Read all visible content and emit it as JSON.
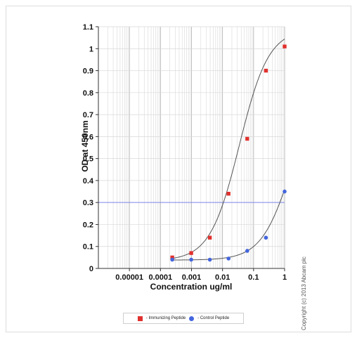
{
  "chart_data": {
    "type": "scatter",
    "title": "",
    "xlabel": "Concentration ug/ml",
    "ylabel": "OD at 450nm",
    "xscale": "log",
    "xlim": [
      1e-06,
      1
    ],
    "ylim": [
      0,
      1.1
    ],
    "x_ticks": [
      {
        "value": 1e-05,
        "label": "0.00001"
      },
      {
        "value": 0.0001,
        "label": "0.0001"
      },
      {
        "value": 0.001,
        "label": "0.001"
      },
      {
        "value": 0.01,
        "label": "0.01"
      },
      {
        "value": 0.1,
        "label": "0.1"
      },
      {
        "value": 1,
        "label": "1"
      }
    ],
    "y_ticks": [
      {
        "value": 0,
        "label": "0"
      },
      {
        "value": 0.1,
        "label": "0.1"
      },
      {
        "value": 0.2,
        "label": "0.2"
      },
      {
        "value": 0.3,
        "label": "0.3"
      },
      {
        "value": 0.4,
        "label": "0.4"
      },
      {
        "value": 0.5,
        "label": "0.5"
      },
      {
        "value": 0.6,
        "label": "0.6"
      },
      {
        "value": 0.7,
        "label": "0.7"
      },
      {
        "value": 0.8,
        "label": "0.8"
      },
      {
        "value": 0.9,
        "label": "0.9"
      },
      {
        "value": 1,
        "label": "1"
      },
      {
        "value": 1.1,
        "label": "1.1"
      }
    ],
    "grid": true,
    "reference_line": {
      "y": 0.3,
      "color": "#7c86e8"
    },
    "legend_position": "bottom-center",
    "series": [
      {
        "name": "- Immunizing Peptide",
        "color": "#e0312e",
        "marker": "square",
        "x": [
          0.00024,
          0.00098,
          0.0039,
          0.0156,
          0.0625,
          0.25,
          1
        ],
        "y": [
          0.05,
          0.07,
          0.14,
          0.34,
          0.59,
          0.9,
          1.01
        ]
      },
      {
        "name": "- Control Peptide",
        "color": "#4466dd",
        "marker": "circle",
        "x": [
          0.00024,
          0.00098,
          0.0039,
          0.0156,
          0.0625,
          0.25,
          1
        ],
        "y": [
          0.04,
          0.04,
          0.04,
          0.045,
          0.08,
          0.14,
          0.35
        ]
      }
    ]
  },
  "copyright": "Copyright (c) 2013 Abcam plc",
  "colors": {
    "curve": "#555555",
    "grid_major": "#aaaaaa",
    "grid_minor": "#d8d8d8",
    "axis": "#333333"
  }
}
